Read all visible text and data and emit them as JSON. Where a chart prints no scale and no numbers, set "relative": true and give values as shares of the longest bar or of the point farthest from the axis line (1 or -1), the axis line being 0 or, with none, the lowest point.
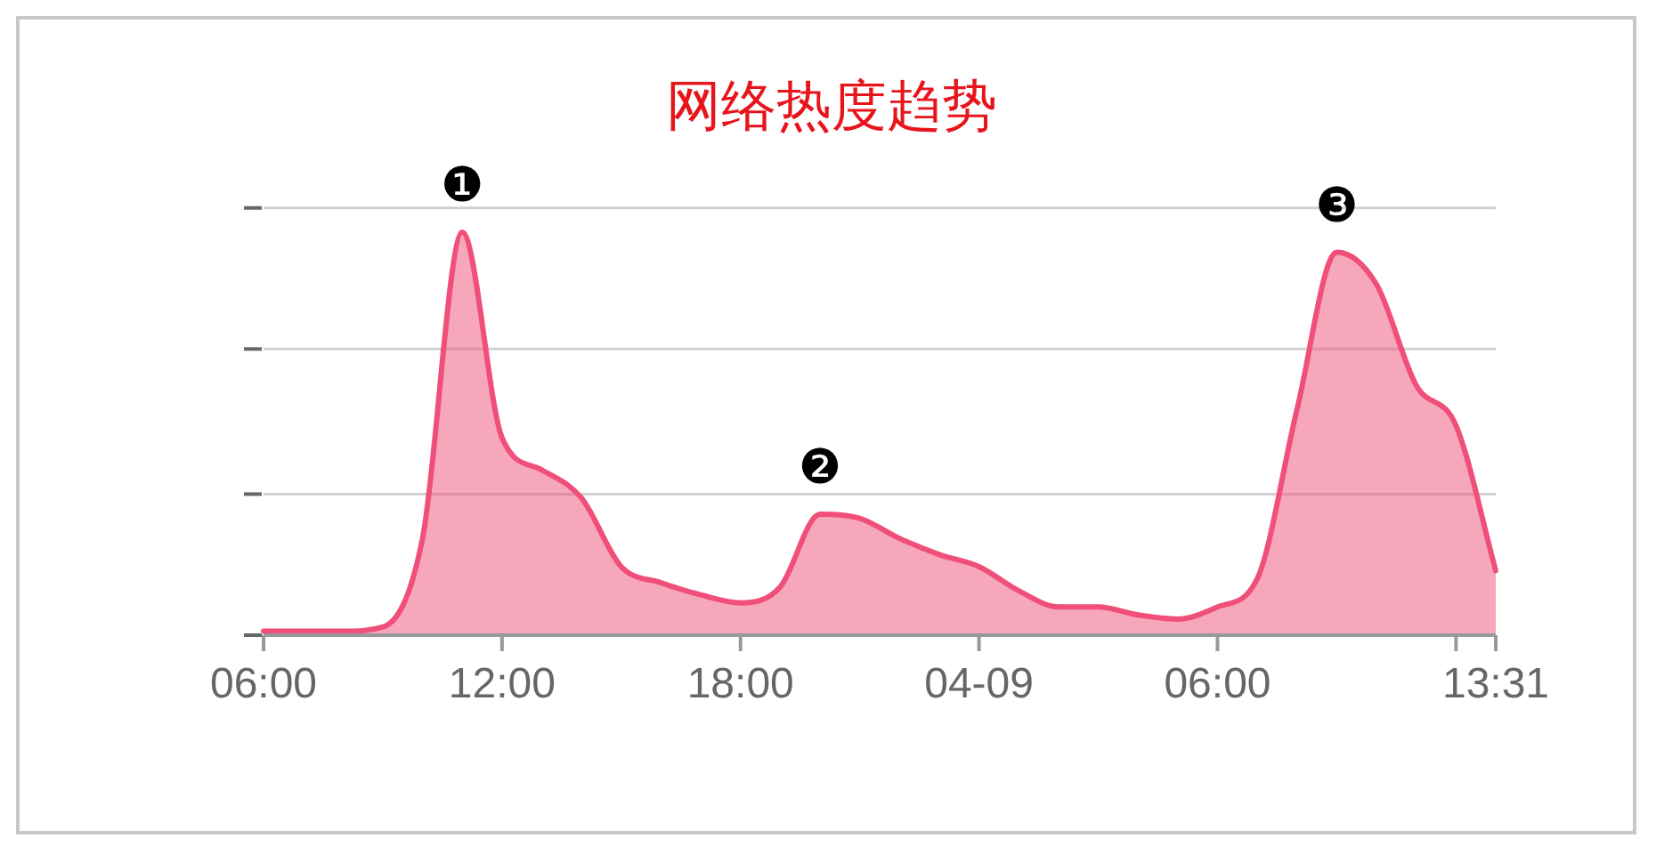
{
  "chart_data": {
    "type": "area",
    "title": "网络热度趋势",
    "relative": true,
    "categories": [
      "06:00",
      null,
      null,
      null,
      null,
      null,
      "12:00",
      null,
      null,
      null,
      null,
      null,
      "18:00",
      null,
      null,
      null,
      null,
      null,
      "04-09",
      null,
      null,
      null,
      null,
      null,
      "06:00",
      null,
      null,
      null,
      null,
      null,
      null,
      "13:31"
    ],
    "series": [
      {
        "color": "#ef4f78",
        "values": [
          0.01,
          0.01,
          0.01,
          0.02,
          0.24,
          1.0,
          0.49,
          0.41,
          0.34,
          0.17,
          0.13,
          0.1,
          0.08,
          0.12,
          0.3,
          0.29,
          0.24,
          0.2,
          0.17,
          0.11,
          0.07,
          0.07,
          0.05,
          0.04,
          0.07,
          0.14,
          0.56,
          0.95,
          0.87,
          0.62,
          0.52,
          0.16
        ]
      }
    ],
    "ref_lines": [
      {
        "axis": "y",
        "value": 0.35,
        "color": "#d0d0d0"
      },
      {
        "axis": "y",
        "value": 0.71,
        "color": "#d0d0d0"
      },
      {
        "axis": "y",
        "value": 1.06,
        "color": "#d0d0d0"
      }
    ],
    "annotations": [
      {
        "text": "❶",
        "y": 1.0
      },
      {
        "text": "❷",
        "y": 0.3
      },
      {
        "text": "❸",
        "y": 0.95
      }
    ]
  }
}
